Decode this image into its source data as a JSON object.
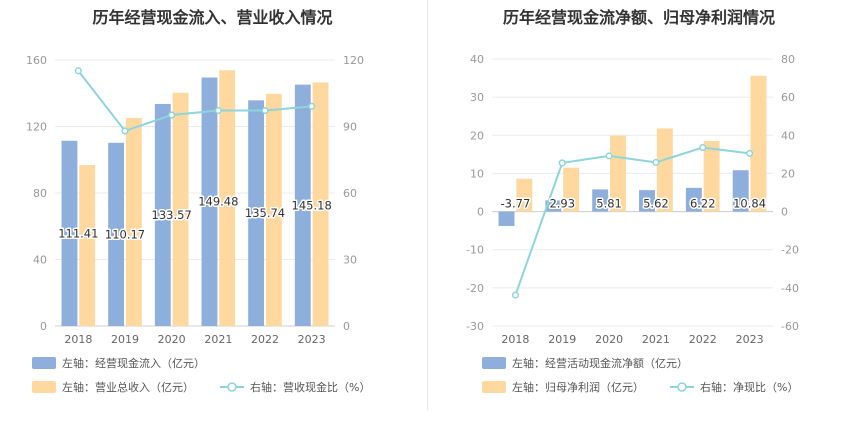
{
  "titles": {
    "left": "历年经营现金流入、营业收入情况",
    "right": "历年经营现金流净额、归母净利润情况"
  },
  "chart_data": [
    {
      "type": "bar",
      "categories": [
        "2018",
        "2019",
        "2020",
        "2021",
        "2022",
        "2023"
      ],
      "series": [
        {
          "name": "左轴：经营现金流入（亿元）",
          "axis": "left",
          "kind": "bar",
          "color": "#8eaedb",
          "values": [
            111.41,
            110.17,
            133.57,
            149.48,
            135.74,
            145.18
          ],
          "labels": [
            "111.41",
            "110.17",
            "133.57",
            "149.48",
            "135.74",
            "145.18"
          ]
        },
        {
          "name": "左轴：营业总收入（亿元）",
          "axis": "left",
          "kind": "bar",
          "color": "#fed89e",
          "values": [
            96.8,
            125.2,
            140.3,
            153.8,
            139.7,
            146.5
          ]
        },
        {
          "name": "右轴：营收现金比（%）",
          "axis": "right",
          "kind": "line",
          "color": "#8dd5dc",
          "values": [
            115.1,
            88.0,
            95.2,
            97.2,
            97.2,
            99.1
          ]
        }
      ],
      "yleft": {
        "min": 0,
        "max": 160,
        "ticks": [
          "0",
          "40",
          "80",
          "120",
          "160"
        ]
      },
      "yright": {
        "min": 0,
        "max": 120,
        "ticks": [
          "0",
          "30",
          "60",
          "90",
          "120"
        ]
      },
      "legend_placement": "bottom",
      "grid": true
    },
    {
      "type": "bar",
      "categories": [
        "2018",
        "2019",
        "2020",
        "2021",
        "2022",
        "2023"
      ],
      "series": [
        {
          "name": "左轴：经营活动现金流净额（亿元）",
          "axis": "left",
          "kind": "bar",
          "color": "#8eaedb",
          "values": [
            -3.77,
            2.93,
            5.81,
            5.62,
            6.22,
            10.84
          ],
          "labels": [
            "-3.77",
            "2.93",
            "5.81",
            "5.62",
            "6.22",
            "10.84"
          ]
        },
        {
          "name": "左轴：归母净利润（亿元）",
          "axis": "left",
          "kind": "bar",
          "color": "#fed89e",
          "values": [
            8.6,
            11.5,
            19.9,
            21.8,
            18.5,
            35.6
          ]
        },
        {
          "name": "右轴：净现比（%）",
          "axis": "right",
          "kind": "line",
          "color": "#8dd5dc",
          "values": [
            -43.8,
            25.5,
            29.2,
            25.8,
            33.6,
            30.5
          ]
        }
      ],
      "yleft": {
        "min": -30,
        "max": 40,
        "ticks": [
          "-30",
          "-20",
          "-10",
          "0",
          "10",
          "20",
          "30",
          "40"
        ]
      },
      "yright": {
        "min": -60,
        "max": 80,
        "ticks": [
          "-60",
          "-40",
          "-20",
          "0",
          "20",
          "40",
          "60",
          "80"
        ]
      },
      "legend_placement": "bottom",
      "grid": true
    }
  ]
}
